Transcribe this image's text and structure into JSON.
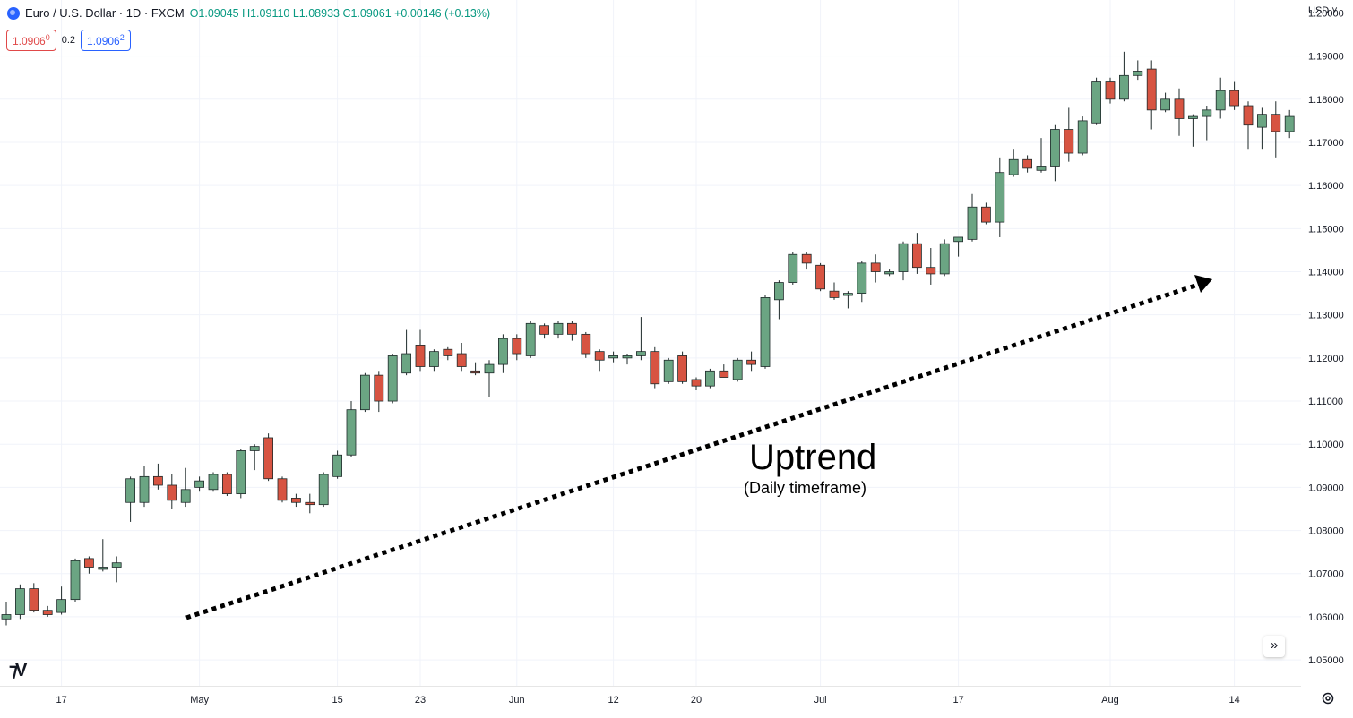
{
  "header": {
    "symbol": "Euro / U.S. Dollar · 1D · FXCM",
    "ohlc": "O1.09045 H1.09110 L1.08933 C1.09061 +0.00146 (+0.13%)"
  },
  "quotes": {
    "sell": "1.0906",
    "sell_sup": "0",
    "spread": "0.2",
    "buy": "1.0906",
    "buy_sup": "2"
  },
  "currency": "USD",
  "colors": {
    "up": "#6ba583",
    "down": "#d75442",
    "grid": "#f0f3fa",
    "axis_text": "#131722"
  },
  "annotation": {
    "title": "Uptrend",
    "subtitle": "(Daily timeframe)"
  },
  "chart_data": {
    "type": "candlestick",
    "title": "Euro / U.S. Dollar · 1D · FXCM",
    "ylim": [
      1.044,
      1.203
    ],
    "y_ticks": [
      1.05,
      1.06,
      1.07,
      1.08,
      1.09,
      1.1,
      1.11,
      1.12,
      1.13,
      1.14,
      1.15,
      1.16,
      1.17,
      1.18,
      1.19,
      1.2
    ],
    "x_tick_labels": [
      {
        "label": "17",
        "index": 4
      },
      {
        "label": "May",
        "index": 14
      },
      {
        "label": "15",
        "index": 24
      },
      {
        "label": "23",
        "index": 30
      },
      {
        "label": "Jun",
        "index": 37
      },
      {
        "label": "12",
        "index": 44
      },
      {
        "label": "20",
        "index": 50
      },
      {
        "label": "Jul",
        "index": 59
      },
      {
        "label": "17",
        "index": 69
      },
      {
        "label": "Aug",
        "index": 80
      },
      {
        "label": "14",
        "index": 89
      }
    ],
    "candles": [
      [
        1.0595,
        1.0635,
        1.058,
        1.0605
      ],
      [
        1.0605,
        1.0675,
        1.0595,
        1.0665
      ],
      [
        1.0665,
        1.0678,
        1.061,
        1.0615
      ],
      [
        1.0615,
        1.0625,
        1.06,
        1.0605
      ],
      [
        1.061,
        1.067,
        1.0605,
        1.064
      ],
      [
        1.064,
        1.0735,
        1.0635,
        1.073
      ],
      [
        1.0735,
        1.074,
        1.07,
        1.0715
      ],
      [
        1.071,
        1.078,
        1.0705,
        1.0715
      ],
      [
        1.0715,
        1.074,
        1.068,
        1.0725
      ],
      [
        1.0865,
        1.0925,
        1.082,
        1.092
      ],
      [
        1.0865,
        1.095,
        1.0855,
        1.0925
      ],
      [
        1.0925,
        1.0955,
        1.0895,
        1.0905
      ],
      [
        1.0905,
        1.093,
        1.085,
        1.087
      ],
      [
        1.0865,
        1.0945,
        1.0855,
        1.0895
      ],
      [
        1.09,
        1.0925,
        1.089,
        1.0915
      ],
      [
        1.0895,
        1.0935,
        1.089,
        1.093
      ],
      [
        1.093,
        1.0935,
        1.088,
        1.0885
      ],
      [
        1.0885,
        1.099,
        1.0875,
        1.0985
      ],
      [
        1.0985,
        1.1,
        1.094,
        1.0995
      ],
      [
        1.1015,
        1.1025,
        1.0915,
        1.092
      ],
      [
        1.092,
        1.0925,
        1.0865,
        1.087
      ],
      [
        1.0875,
        1.0885,
        1.0855,
        1.0865
      ],
      [
        1.0865,
        1.0885,
        1.084,
        1.086
      ],
      [
        1.086,
        1.0935,
        1.0855,
        1.093
      ],
      [
        1.0925,
        1.0985,
        1.092,
        1.0975
      ],
      [
        1.0975,
        1.11,
        1.097,
        1.108
      ],
      [
        1.108,
        1.1165,
        1.1075,
        1.116
      ],
      [
        1.116,
        1.117,
        1.1075,
        1.11
      ],
      [
        1.11,
        1.121,
        1.1095,
        1.1205
      ],
      [
        1.1165,
        1.1265,
        1.116,
        1.121
      ],
      [
        1.123,
        1.1265,
        1.117,
        1.118
      ],
      [
        1.118,
        1.122,
        1.117,
        1.1215
      ],
      [
        1.122,
        1.1225,
        1.1195,
        1.1205
      ],
      [
        1.121,
        1.1235,
        1.117,
        1.118
      ],
      [
        1.117,
        1.119,
        1.116,
        1.1165
      ],
      [
        1.1165,
        1.1195,
        1.111,
        1.1185
      ],
      [
        1.1185,
        1.1255,
        1.1165,
        1.1245
      ],
      [
        1.1245,
        1.1255,
        1.1195,
        1.121
      ],
      [
        1.1205,
        1.1285,
        1.12,
        1.128
      ],
      [
        1.1275,
        1.128,
        1.1245,
        1.1255
      ],
      [
        1.1255,
        1.1285,
        1.1245,
        1.128
      ],
      [
        1.128,
        1.1285,
        1.124,
        1.1255
      ],
      [
        1.1255,
        1.126,
        1.12,
        1.121
      ],
      [
        1.1215,
        1.122,
        1.117,
        1.1195
      ],
      [
        1.12,
        1.1215,
        1.119,
        1.1205
      ],
      [
        1.12,
        1.121,
        1.1185,
        1.1205
      ],
      [
        1.1205,
        1.1295,
        1.1195,
        1.1215
      ],
      [
        1.1215,
        1.1225,
        1.113,
        1.114
      ],
      [
        1.1145,
        1.12,
        1.114,
        1.1195
      ],
      [
        1.1205,
        1.1215,
        1.114,
        1.1145
      ],
      [
        1.115,
        1.1155,
        1.1125,
        1.1135
      ],
      [
        1.1135,
        1.1175,
        1.113,
        1.117
      ],
      [
        1.117,
        1.1185,
        1.1155,
        1.1155
      ],
      [
        1.115,
        1.12,
        1.1145,
        1.1195
      ],
      [
        1.1195,
        1.1215,
        1.117,
        1.1185
      ],
      [
        1.118,
        1.1345,
        1.1175,
        1.134
      ],
      [
        1.1335,
        1.138,
        1.129,
        1.1375
      ],
      [
        1.1375,
        1.1445,
        1.137,
        1.144
      ],
      [
        1.144,
        1.1445,
        1.1405,
        1.142
      ],
      [
        1.1415,
        1.142,
        1.1355,
        1.136
      ],
      [
        1.1355,
        1.1375,
        1.1335,
        1.134
      ],
      [
        1.1345,
        1.1355,
        1.1315,
        1.135
      ],
      [
        1.135,
        1.1425,
        1.133,
        1.142
      ],
      [
        1.142,
        1.144,
        1.1375,
        1.14
      ],
      [
        1.1395,
        1.1405,
        1.139,
        1.14
      ],
      [
        1.14,
        1.147,
        1.138,
        1.1465
      ],
      [
        1.1465,
        1.149,
        1.1395,
        1.141
      ],
      [
        1.141,
        1.1455,
        1.137,
        1.1395
      ],
      [
        1.1395,
        1.1475,
        1.139,
        1.1465
      ],
      [
        1.147,
        1.1475,
        1.1435,
        1.148
      ],
      [
        1.1475,
        1.158,
        1.147,
        1.155
      ],
      [
        1.155,
        1.156,
        1.151,
        1.1515
      ],
      [
        1.1515,
        1.1665,
        1.148,
        1.163
      ],
      [
        1.1625,
        1.1685,
        1.162,
        1.166
      ],
      [
        1.166,
        1.167,
        1.163,
        1.164
      ],
      [
        1.1635,
        1.171,
        1.163,
        1.1645
      ],
      [
        1.1645,
        1.174,
        1.161,
        1.173
      ],
      [
        1.173,
        1.178,
        1.1655,
        1.1675
      ],
      [
        1.1675,
        1.176,
        1.167,
        1.175
      ],
      [
        1.1745,
        1.185,
        1.174,
        1.184
      ],
      [
        1.184,
        1.185,
        1.179,
        1.18
      ],
      [
        1.18,
        1.191,
        1.1795,
        1.1855
      ],
      [
        1.1855,
        1.189,
        1.1845,
        1.1865
      ],
      [
        1.187,
        1.189,
        1.173,
        1.1775
      ],
      [
        1.1775,
        1.1815,
        1.177,
        1.18
      ],
      [
        1.18,
        1.1825,
        1.1715,
        1.1755
      ],
      [
        1.1755,
        1.1765,
        1.169,
        1.176
      ],
      [
        1.176,
        1.1785,
        1.1705,
        1.1775
      ],
      [
        1.1775,
        1.185,
        1.1755,
        1.182
      ],
      [
        1.182,
        1.184,
        1.1775,
        1.1785
      ],
      [
        1.1785,
        1.1795,
        1.1685,
        1.174
      ],
      [
        1.1735,
        1.178,
        1.1685,
        1.1765
      ],
      [
        1.1765,
        1.1795,
        1.1665,
        1.1725
      ],
      [
        1.1725,
        1.1775,
        1.171,
        1.176
      ]
    ]
  }
}
